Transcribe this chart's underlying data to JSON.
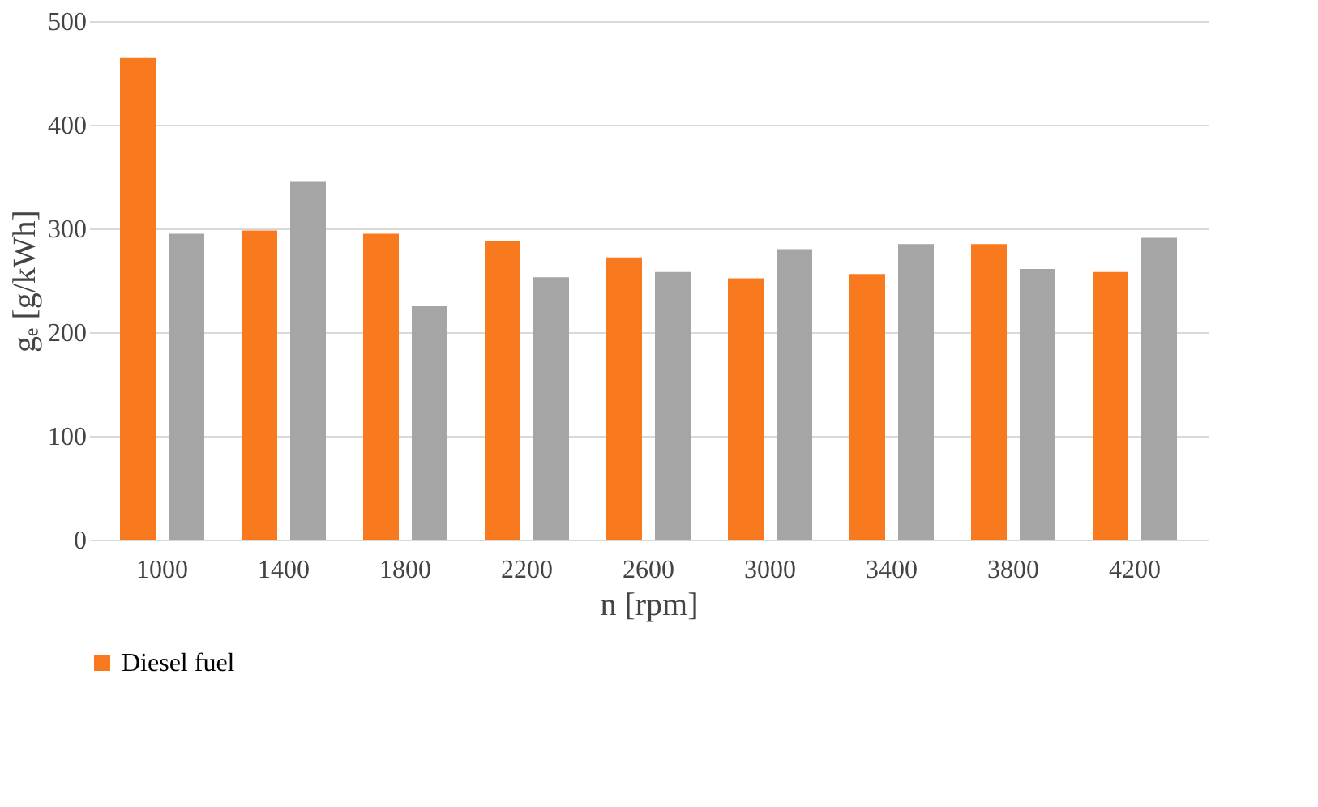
{
  "chart_data": {
    "type": "bar",
    "xlabel": "n [rpm]",
    "ylabel": "gₑ [g/kWh]",
    "categories": [
      "1000",
      "1400",
      "1800",
      "2200",
      "2600",
      "3000",
      "3400",
      "3800",
      "4200"
    ],
    "series": [
      {
        "name": "Diesel fuel",
        "color": "#f97a1e",
        "values": [
          465,
          298,
          295,
          288,
          272,
          252,
          256,
          285,
          258
        ]
      },
      {
        "color": "#a5a5a5",
        "values": [
          295,
          345,
          225,
          253,
          258,
          280,
          285,
          261,
          291
        ]
      }
    ],
    "ylim": [
      0,
      500
    ],
    "yticks": [
      0,
      100,
      200,
      300,
      400,
      500
    ],
    "grid": "y",
    "legend": "bottom"
  }
}
